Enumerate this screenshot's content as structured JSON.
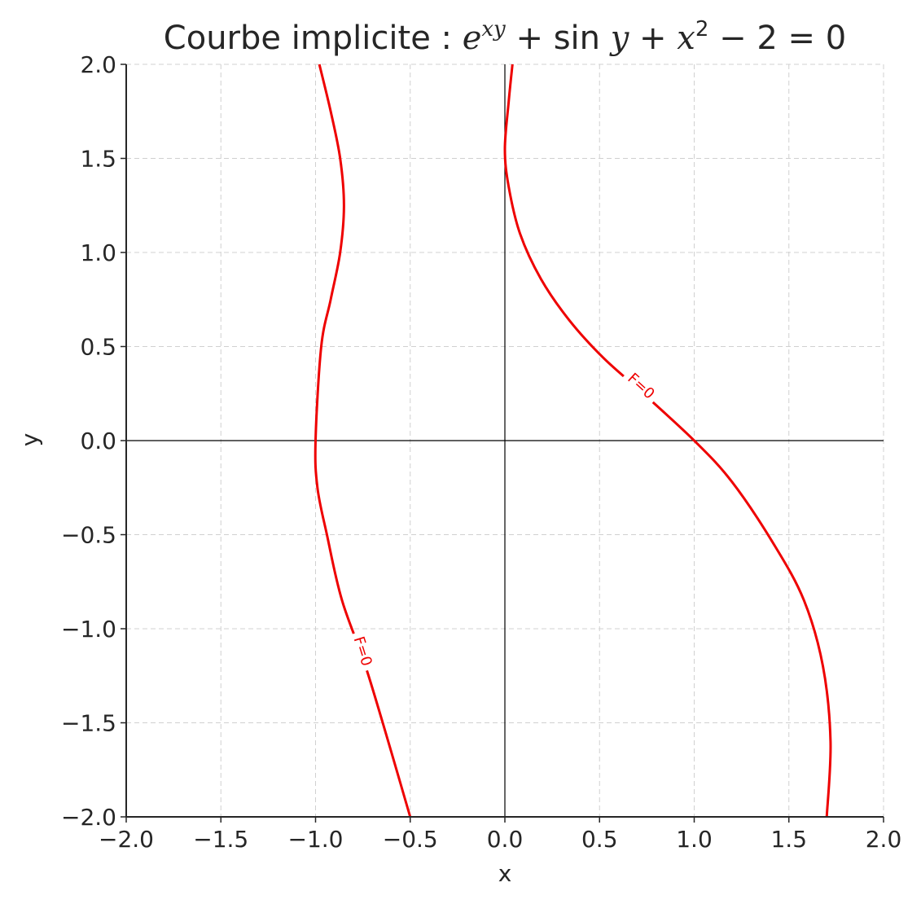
{
  "chart_data": {
    "type": "line",
    "title": {
      "prefix": "Courbe implicite : ",
      "base": "e",
      "exponent": "xy",
      "plus1": " + ",
      "sin": "sin",
      "y": "y",
      "plus2": " + ",
      "x": "x",
      "power": "2",
      "rest": " − 2 = 0"
    },
    "xlabel": "x",
    "ylabel": "y",
    "xlim": [
      -2.0,
      2.0
    ],
    "ylim": [
      -2.0,
      2.0
    ],
    "xticks": [
      "−2.0",
      "−1.5",
      "−1.0",
      "−0.5",
      "0.0",
      "0.5",
      "1.0",
      "1.5",
      "2.0"
    ],
    "yticks": [
      "2.0",
      "1.5",
      "1.0",
      "0.5",
      "0.0",
      "−0.5",
      "−1.0",
      "−1.5",
      "−2.0"
    ],
    "grid": true,
    "reference_lines": [
      "x = 0",
      "y = 0"
    ],
    "series": [
      {
        "label": "F=0",
        "color": "#ee0000",
        "x": [
          -0.98,
          -0.92,
          -0.87,
          -0.85,
          -0.87,
          -0.92,
          -0.97,
          -1.0,
          -0.99,
          -0.94,
          -0.86,
          -0.72,
          -0.5
        ],
        "y": [
          2.0,
          1.75,
          1.5,
          1.25,
          1.0,
          0.75,
          0.5,
          0.0,
          -0.25,
          -0.5,
          -0.85,
          -1.25,
          -2.0
        ],
        "label_at": [
          -0.75,
          -1.12
        ]
      },
      {
        "label": "F=0",
        "color": "#ee0000",
        "x": [
          0.04,
          0.02,
          0.0,
          0.02,
          0.08,
          0.19,
          0.34,
          0.52,
          0.72,
          1.0,
          1.2,
          1.42,
          1.58,
          1.68,
          1.72,
          1.7
        ],
        "y": [
          2.0,
          1.8,
          1.55,
          1.35,
          1.1,
          0.86,
          0.64,
          0.44,
          0.26,
          0.0,
          -0.22,
          -0.55,
          -0.85,
          -1.2,
          -1.6,
          -2.0
        ],
        "label_at": [
          0.72,
          0.29
        ]
      }
    ]
  }
}
